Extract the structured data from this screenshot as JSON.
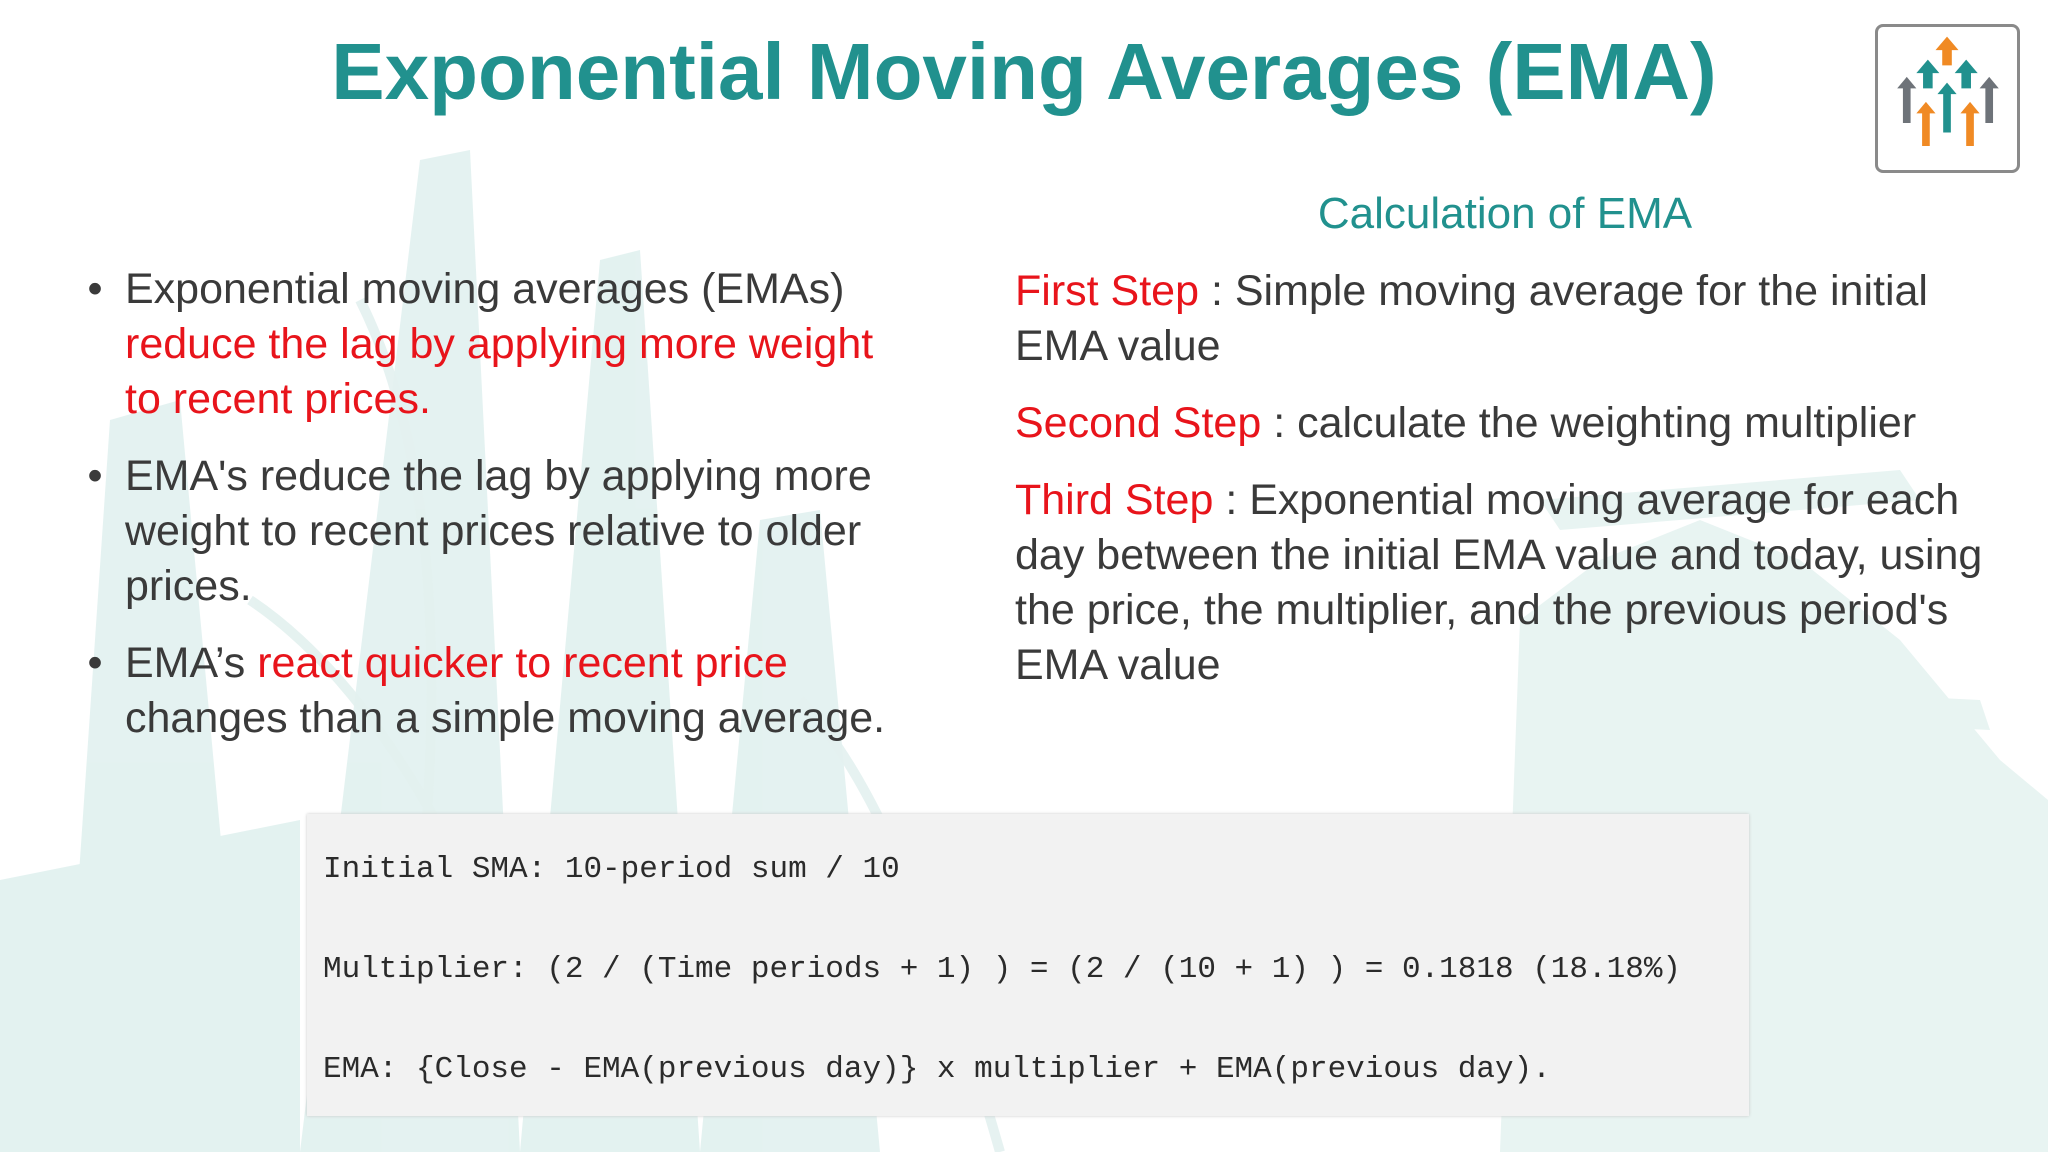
{
  "title": "Exponential Moving Averages (EMA)",
  "logo": {
    "icon": "rising-arrows-icon",
    "colors": [
      "#f08a24",
      "#21918e",
      "#6e7379"
    ]
  },
  "left": {
    "bullets": [
      {
        "marker": "•",
        "parts": [
          {
            "text": " Exponential moving averages (EMAs) ",
            "style": "normal"
          },
          {
            "text": "reduce the lag by applying more weight to recent prices.",
            "style": "red"
          }
        ]
      },
      {
        "marker": "•",
        "parts": [
          {
            "text": " EMA's reduce the lag by applying more weight to recent prices relative to older prices.",
            "style": "normal"
          }
        ]
      },
      {
        "marker": "•",
        "parts": [
          {
            "text": "  EMA’s ",
            "style": "normal"
          },
          {
            "text": "react quicker to recent price",
            "style": "red"
          },
          {
            "text": " changes than a simple moving average.",
            "style": "normal"
          }
        ]
      }
    ]
  },
  "right": {
    "heading": "Calculation of EMA",
    "steps": [
      {
        "label": "First Step",
        "text": " : Simple moving average for the initial EMA value"
      },
      {
        "label": "Second Step",
        "text": " : calculate the weighting multiplier"
      },
      {
        "label": "Third Step",
        "text": " : Exponential moving average for each day between the initial EMA value and today, using the price, the multiplier, and the previous period's EMA value"
      }
    ]
  },
  "code": {
    "lines": [
      "Initial SMA: 10-period sum / 10",
      "Multiplier: (2 / (Time periods + 1) ) = (2 / (10 + 1) ) = 0.1818 (18.18%)",
      "EMA: {Close - EMA(previous day)} x multiplier + EMA(previous day)."
    ]
  },
  "colors": {
    "accent": "#21918e",
    "highlight": "#e8141b",
    "body_text": "#3a3a3a"
  }
}
